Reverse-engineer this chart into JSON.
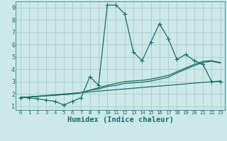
{
  "xlabel": "Humidex (Indice chaleur)",
  "bg_color": "#cce8e8",
  "line_color": "#1a6b6b",
  "grid_color": "#aacccc",
  "xlim": [
    -0.5,
    23.5
  ],
  "ylim": [
    0.7,
    9.5
  ],
  "xticks": [
    0,
    1,
    2,
    3,
    4,
    5,
    6,
    7,
    8,
    9,
    10,
    11,
    12,
    13,
    14,
    15,
    16,
    17,
    18,
    19,
    20,
    21,
    22,
    23
  ],
  "yticks": [
    1,
    2,
    3,
    4,
    5,
    6,
    7,
    8,
    9
  ],
  "series_main": {
    "x": [
      0,
      1,
      2,
      3,
      4,
      5,
      6,
      7,
      8,
      9,
      10,
      11,
      12,
      13,
      14,
      15,
      16,
      17,
      18,
      19,
      20,
      21,
      22,
      23
    ],
    "y": [
      1.7,
      1.7,
      1.6,
      1.5,
      1.4,
      1.1,
      1.4,
      1.7,
      3.4,
      2.7,
      9.2,
      9.2,
      8.5,
      5.4,
      4.7,
      6.2,
      7.7,
      6.5,
      4.8,
      5.2,
      4.7,
      4.4,
      3.0,
      3.0
    ]
  },
  "series_trend1": {
    "x": [
      0,
      1,
      2,
      3,
      4,
      5,
      6,
      7,
      8,
      9,
      10,
      11,
      12,
      13,
      14,
      15,
      16,
      17,
      18,
      19,
      20,
      21,
      22,
      23
    ],
    "y": [
      1.7,
      1.75,
      1.8,
      1.85,
      1.9,
      1.95,
      2.0,
      2.1,
      2.3,
      2.5,
      2.7,
      2.85,
      3.0,
      3.05,
      3.1,
      3.2,
      3.35,
      3.5,
      3.8,
      4.1,
      4.4,
      4.65,
      4.7,
      4.55
    ]
  },
  "series_trend2": {
    "x": [
      0,
      1,
      2,
      3,
      4,
      5,
      6,
      7,
      8,
      9,
      10,
      11,
      12,
      13,
      14,
      15,
      16,
      17,
      18,
      19,
      20,
      21,
      22,
      23
    ],
    "y": [
      1.7,
      1.75,
      1.8,
      1.85,
      1.9,
      1.95,
      2.0,
      2.1,
      2.3,
      2.4,
      2.6,
      2.7,
      2.85,
      2.9,
      2.95,
      3.05,
      3.2,
      3.35,
      3.7,
      4.0,
      4.3,
      4.55,
      4.65,
      4.5
    ]
  },
  "series_linear": {
    "x": [
      0,
      23
    ],
    "y": [
      1.7,
      3.05
    ]
  },
  "marker": "+",
  "marker_size": 4,
  "linewidth": 0.9
}
